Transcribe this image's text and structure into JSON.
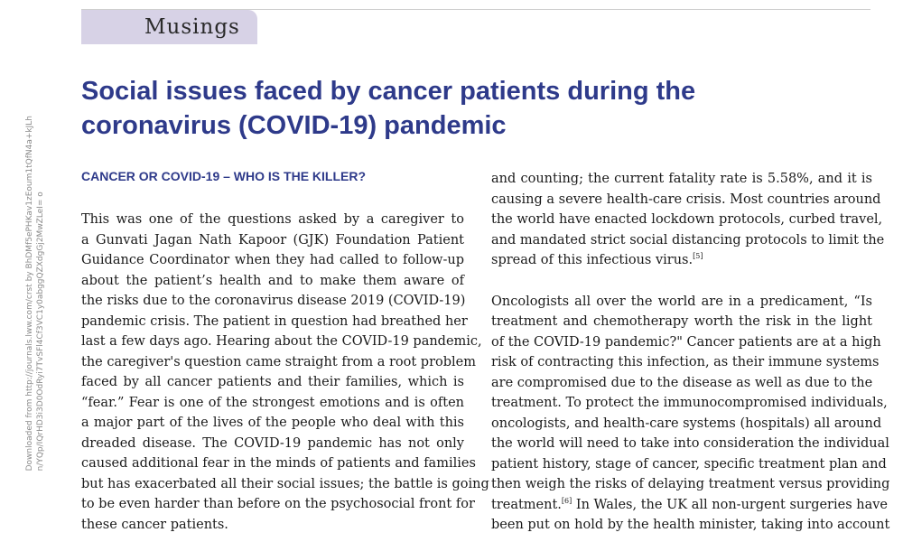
{
  "side_note": {
    "line1": "Downloaded from http://journals.lww.com/crst by BhDMf5ePHKav1zEoum1tQfN4a+kJLh",
    "line2": "n/YQp/IQrHD3i3D0OdRyi7TvSFl4Cf3VC1y0abggQZXdgGj2MwZLeI= o"
  },
  "section": "Musings",
  "title": "Social issues faced by cancer patients during the coronavirus (COVID-19) pandemic",
  "subheading": "CANCER OR COVID-19 – WHO IS THE KILLER?",
  "left_column": [
    "This was one of the questions asked by a caregiver to",
    "a Gunvati Jagan Nath Kapoor (GJK) Foundation Patient",
    "Guidance Coordinator when they had called to follow-up",
    "about the patient’s health and to make them aware of",
    "the risks due to the coronavirus disease 2019 (COVID-19)",
    "pandemic crisis. The patient in question had breathed her",
    "last a few days ago. Hearing about the COVID-19 pandemic,",
    "the caregiver's question came straight from a root problem",
    "faced by all cancer patients and their families, which is",
    "“fear.” Fear is one of the strongest emotions and is often",
    "a major part of the lives of the people who deal with this",
    "dreaded disease. The COVID-19 pandemic has not only",
    "caused additional fear in the minds of patients and families",
    "but has exacerbated all their social issues; the battle is going",
    "to be even harder than before on the psychosocial front for",
    "these cancer patients."
  ],
  "right_para1": [
    "and counting; the current fatality rate is 5.58%, and it is",
    "causing a severe health-care crisis. Most countries around",
    "the world have enacted lockdown protocols, curbed travel,",
    "and mandated strict social distancing protocols to limit the",
    "spread of this infectious virus."
  ],
  "ref5": "[5]",
  "right_para2": [
    "Oncologists all over the world are in a predicament, “Is",
    "treatment and chemotherapy worth the risk in the light",
    "of the COVID-19 pandemic?\" Cancer patients are at a high",
    "risk of contracting this infection, as their immune systems",
    "are compromised due to the disease as well as due to the",
    "treatment. To protect the immunocompromised individuals,",
    "oncologists, and health-care systems (hospitals) all around",
    "the world will need to take into consideration the individual",
    "patient history, stage of cancer, specific treatment plan and",
    "then weigh the risks of delaying treatment versus providing"
  ],
  "right_line_treatment": "treatment.",
  "ref6": "[6]",
  "right_line_wales": " In Wales, the UK all non-urgent surgeries have",
  "right_line_last": "been put on hold by the health minister, taking into account"
}
